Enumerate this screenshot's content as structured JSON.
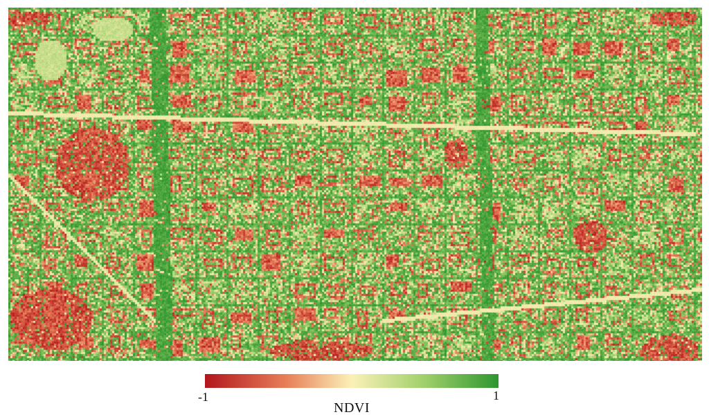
{
  "map": {
    "variable": "NDVI",
    "scale": {
      "min_label": "-1",
      "max_label": "1",
      "min": -1,
      "max": 1
    },
    "colors": {
      "low": "#b2161b",
      "low_mid": "#e8805a",
      "mid": "#fbf1b8",
      "high_mid": "#9fcf6a",
      "high": "#2e9630"
    }
  }
}
